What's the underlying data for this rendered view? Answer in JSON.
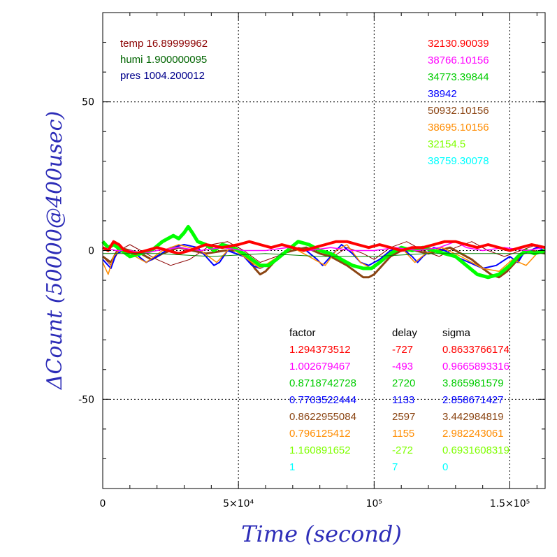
{
  "chart_data": {
    "type": "line",
    "xlabel": "Time (second)",
    "ylabel": "ΔCount (50000@400usec)",
    "xlim": [
      0,
      163000
    ],
    "ylim": [
      -80,
      80
    ],
    "grid": true,
    "x_ticks": [
      {
        "value": 0,
        "label": "0"
      },
      {
        "value": 50000,
        "label": "5×10⁴"
      },
      {
        "value": 100000,
        "label": "10⁵"
      },
      {
        "value": 150000,
        "label": "1.5×10⁵"
      }
    ],
    "y_ticks": [
      {
        "value": 50,
        "label": "50"
      },
      {
        "value": 0,
        "label": "0"
      },
      {
        "value": -50,
        "label": "-50"
      }
    ],
    "env": [
      {
        "label": "temp",
        "value": "16.89999962",
        "color": "#8b0000"
      },
      {
        "label": "humi",
        "value": "1.900000095",
        "color": "#006400"
      },
      {
        "label": "pres",
        "value": "1004.200012",
        "color": "#00008b"
      }
    ],
    "right_values": [
      {
        "value": "32130.90039",
        "color": "#ff0000"
      },
      {
        "value": "38766.10156",
        "color": "#ff00ff"
      },
      {
        "value": "34773.39844",
        "color": "#00cc00"
      },
      {
        "value": "38942",
        "color": "#0000ff"
      },
      {
        "value": "50932.10156",
        "color": "#8b4513"
      },
      {
        "value": "38695.10156",
        "color": "#ff8c00"
      },
      {
        "value": "32154.5",
        "color": "#7fff00"
      },
      {
        "value": "38759.30078",
        "color": "#00ffff"
      }
    ],
    "table": {
      "headers": [
        "factor",
        "delay",
        "sigma"
      ],
      "rows": [
        {
          "factor": "1.294373512",
          "delay": "-727",
          "sigma": "0.8633766174",
          "color": "#ff0000"
        },
        {
          "factor": "1.002679467",
          "delay": "-493",
          "sigma": "0.9665893316",
          "color": "#ff00ff"
        },
        {
          "factor": "0.8718742728",
          "delay": "2720",
          "sigma": "3.865981579",
          "color": "#00cc00"
        },
        {
          "factor": "0.7703522444",
          "delay": "1133",
          "sigma": "2.858671427",
          "color": "#0000ff"
        },
        {
          "factor": "0.8622955084",
          "delay": "2597",
          "sigma": "3.442984819",
          "color": "#8b4513"
        },
        {
          "factor": "0.796125412",
          "delay": "1155",
          "sigma": "2.982243061",
          "color": "#ff8c00"
        },
        {
          "factor": "1.160891652",
          "delay": "-272",
          "sigma": "0.6931608319",
          "color": "#7fff00"
        },
        {
          "factor": "1",
          "delay": "7",
          "sigma": "0",
          "color": "#00ffff"
        }
      ]
    },
    "series": [
      {
        "color": "#8b0000",
        "width": 1,
        "points": [
          [
            0,
            -2
          ],
          [
            3000,
            -5
          ],
          [
            6000,
            0
          ],
          [
            10000,
            2
          ],
          [
            20000,
            -3
          ],
          [
            25000,
            -5
          ],
          [
            32000,
            -3
          ],
          [
            40000,
            2
          ],
          [
            46000,
            3
          ],
          [
            52000,
            0
          ],
          [
            58000,
            -4
          ],
          [
            64000,
            -2
          ],
          [
            72000,
            1
          ],
          [
            80000,
            0
          ],
          [
            85000,
            -2
          ],
          [
            90000,
            1
          ],
          [
            96000,
            -1
          ],
          [
            100000,
            -3
          ],
          [
            106000,
            1
          ],
          [
            112000,
            3
          ],
          [
            118000,
            0
          ],
          [
            124000,
            -2
          ],
          [
            130000,
            1
          ],
          [
            136000,
            3
          ],
          [
            142000,
            0
          ],
          [
            148000,
            -2
          ],
          [
            154000,
            0
          ],
          [
            160000,
            2
          ],
          [
            163000,
            1
          ]
        ]
      },
      {
        "color": "#8b4513",
        "width": 3,
        "points": [
          [
            0,
            -2
          ],
          [
            3000,
            -4
          ],
          [
            6000,
            1
          ],
          [
            10000,
            0
          ],
          [
            14000,
            -1
          ],
          [
            18000,
            -3
          ],
          [
            22000,
            -1
          ],
          [
            25000,
            0
          ],
          [
            28000,
            1
          ],
          [
            33000,
            0
          ],
          [
            38000,
            -1
          ],
          [
            45000,
            0
          ],
          [
            50000,
            0
          ],
          [
            54000,
            -3
          ],
          [
            56000,
            -6
          ],
          [
            58000,
            -8
          ],
          [
            60000,
            -7
          ],
          [
            63000,
            -4
          ],
          [
            66000,
            -1
          ],
          [
            70000,
            0
          ],
          [
            75000,
            1
          ],
          [
            80000,
            -1
          ],
          [
            84000,
            -2
          ],
          [
            88000,
            -4
          ],
          [
            90000,
            -5
          ],
          [
            93000,
            -7
          ],
          [
            96000,
            -9
          ],
          [
            98000,
            -9
          ],
          [
            100000,
            -8
          ],
          [
            103000,
            -5
          ],
          [
            106000,
            -2
          ],
          [
            110000,
            0
          ],
          [
            115000,
            0
          ],
          [
            120000,
            -1
          ],
          [
            124000,
            0
          ],
          [
            128000,
            1
          ],
          [
            132000,
            -1
          ],
          [
            136000,
            -3
          ],
          [
            140000,
            -6
          ],
          [
            143000,
            -8
          ],
          [
            146000,
            -9
          ],
          [
            149000,
            -7
          ],
          [
            152000,
            -4
          ],
          [
            155000,
            -1
          ],
          [
            158000,
            0
          ],
          [
            163000,
            -1
          ]
        ]
      },
      {
        "color": "#0000ff",
        "width": 2,
        "points": [
          [
            0,
            -3
          ],
          [
            3000,
            -6
          ],
          [
            5000,
            -1
          ],
          [
            8000,
            0
          ],
          [
            12000,
            -1
          ],
          [
            16000,
            -4
          ],
          [
            20000,
            -2
          ],
          [
            25000,
            1
          ],
          [
            30000,
            2
          ],
          [
            35000,
            1
          ],
          [
            38000,
            -2
          ],
          [
            41000,
            -5
          ],
          [
            43000,
            -4
          ],
          [
            46000,
            0
          ],
          [
            52000,
            -2
          ],
          [
            55000,
            -5
          ],
          [
            58000,
            -6
          ],
          [
            62000,
            -4
          ],
          [
            66000,
            -1
          ],
          [
            70000,
            1
          ],
          [
            75000,
            0
          ],
          [
            79000,
            -3
          ],
          [
            81000,
            -5
          ],
          [
            83000,
            -3
          ],
          [
            88000,
            2
          ],
          [
            92000,
            -1
          ],
          [
            95000,
            -4
          ],
          [
            98000,
            -5
          ],
          [
            102000,
            -3
          ],
          [
            106000,
            0
          ],
          [
            110000,
            1
          ],
          [
            114000,
            -2
          ],
          [
            116000,
            -4
          ],
          [
            118000,
            -2
          ],
          [
            122000,
            1
          ],
          [
            126000,
            0
          ],
          [
            130000,
            -2
          ],
          [
            135000,
            -4
          ],
          [
            140000,
            -6
          ],
          [
            145000,
            -5
          ],
          [
            150000,
            -2
          ],
          [
            153000,
            -4
          ],
          [
            155000,
            -1
          ],
          [
            160000,
            1
          ],
          [
            163000,
            0
          ]
        ]
      },
      {
        "color": "#ff8c00",
        "width": 1.5,
        "points": [
          [
            0,
            -4
          ],
          [
            2000,
            -8
          ],
          [
            4000,
            -2
          ],
          [
            7000,
            1
          ],
          [
            12000,
            -2
          ],
          [
            16000,
            -4
          ],
          [
            22000,
            0
          ],
          [
            28000,
            2
          ],
          [
            36000,
            0
          ],
          [
            42000,
            -4
          ],
          [
            47000,
            1
          ],
          [
            52000,
            -2
          ],
          [
            58000,
            -6
          ],
          [
            63000,
            -3
          ],
          [
            70000,
            1
          ],
          [
            78000,
            -3
          ],
          [
            82000,
            -5
          ],
          [
            86000,
            0
          ],
          [
            90000,
            2
          ],
          [
            95000,
            -4
          ],
          [
            99000,
            -6
          ],
          [
            103000,
            -3
          ],
          [
            110000,
            1
          ],
          [
            115000,
            -4
          ],
          [
            119000,
            -1
          ],
          [
            125000,
            1
          ],
          [
            132000,
            -2
          ],
          [
            140000,
            -6
          ],
          [
            146000,
            -7
          ],
          [
            151000,
            -3
          ],
          [
            156000,
            -5
          ],
          [
            160000,
            -1
          ],
          [
            163000,
            0
          ]
        ]
      },
      {
        "color": "#00ff00",
        "width": 5,
        "points": [
          [
            0,
            3
          ],
          [
            2000,
            1
          ],
          [
            4000,
            2
          ],
          [
            7000,
            0
          ],
          [
            10000,
            -2
          ],
          [
            14000,
            -1
          ],
          [
            18000,
            0
          ],
          [
            22000,
            3
          ],
          [
            26000,
            5
          ],
          [
            28000,
            4
          ],
          [
            30000,
            6
          ],
          [
            31500,
            8
          ],
          [
            33000,
            6
          ],
          [
            35000,
            3
          ],
          [
            38000,
            2
          ],
          [
            41000,
            0
          ],
          [
            44000,
            2
          ],
          [
            48000,
            1
          ],
          [
            52000,
            -1
          ],
          [
            55000,
            -3
          ],
          [
            58000,
            -5
          ],
          [
            61000,
            -5
          ],
          [
            64000,
            -3
          ],
          [
            68000,
            0
          ],
          [
            72000,
            3
          ],
          [
            76000,
            2
          ],
          [
            80000,
            0
          ],
          [
            84000,
            -1
          ],
          [
            88000,
            -3
          ],
          [
            92000,
            -5
          ],
          [
            96000,
            -6
          ],
          [
            99000,
            -6
          ],
          [
            102000,
            -4
          ],
          [
            106000,
            -1
          ],
          [
            110000,
            1
          ],
          [
            114000,
            0
          ],
          [
            118000,
            1
          ],
          [
            122000,
            0
          ],
          [
            126000,
            -1
          ],
          [
            130000,
            -2
          ],
          [
            134000,
            -5
          ],
          [
            138000,
            -8
          ],
          [
            142000,
            -9
          ],
          [
            146000,
            -8
          ],
          [
            150000,
            -5
          ],
          [
            153000,
            -2
          ],
          [
            156000,
            0
          ],
          [
            159000,
            -1
          ],
          [
            163000,
            0
          ]
        ]
      },
      {
        "color": "#ff00ff",
        "width": 1.5,
        "points": [
          [
            0,
            1
          ],
          [
            5000,
            0
          ],
          [
            10000,
            0
          ],
          [
            15000,
            -1
          ],
          [
            20000,
            0
          ],
          [
            28000,
            1
          ],
          [
            36000,
            0
          ],
          [
            44000,
            1
          ],
          [
            52000,
            0
          ],
          [
            60000,
            0
          ],
          [
            68000,
            1
          ],
          [
            76000,
            0
          ],
          [
            84000,
            1
          ],
          [
            92000,
            0
          ],
          [
            100000,
            0
          ],
          [
            108000,
            1
          ],
          [
            116000,
            0
          ],
          [
            124000,
            1
          ],
          [
            130000,
            3
          ],
          [
            134000,
            1
          ],
          [
            140000,
            0
          ],
          [
            148000,
            1
          ],
          [
            156000,
            0
          ],
          [
            163000,
            1
          ]
        ]
      },
      {
        "color": "#ff0000",
        "width": 4,
        "points": [
          [
            0,
            1
          ],
          [
            2000,
            0
          ],
          [
            4000,
            3
          ],
          [
            6000,
            2
          ],
          [
            8000,
            0
          ],
          [
            12000,
            -1
          ],
          [
            16000,
            0
          ],
          [
            20000,
            1
          ],
          [
            24000,
            0
          ],
          [
            28000,
            -1
          ],
          [
            32000,
            0
          ],
          [
            38000,
            2
          ],
          [
            44000,
            1
          ],
          [
            50000,
            2
          ],
          [
            54000,
            3
          ],
          [
            58000,
            2
          ],
          [
            62000,
            1
          ],
          [
            66000,
            2
          ],
          [
            70000,
            1
          ],
          [
            74000,
            0
          ],
          [
            78000,
            1
          ],
          [
            82000,
            2
          ],
          [
            86000,
            3
          ],
          [
            90000,
            3
          ],
          [
            94000,
            2
          ],
          [
            98000,
            1
          ],
          [
            102000,
            2
          ],
          [
            106000,
            1
          ],
          [
            110000,
            0
          ],
          [
            114000,
            1
          ],
          [
            118000,
            1
          ],
          [
            122000,
            2
          ],
          [
            126000,
            3
          ],
          [
            130000,
            3
          ],
          [
            134000,
            2
          ],
          [
            138000,
            1
          ],
          [
            142000,
            2
          ],
          [
            146000,
            1
          ],
          [
            150000,
            0
          ],
          [
            154000,
            1
          ],
          [
            158000,
            2
          ],
          [
            163000,
            1
          ]
        ]
      },
      {
        "color": "#008000",
        "width": 1,
        "points": [
          [
            0,
            -1
          ],
          [
            20000,
            -1
          ],
          [
            40000,
            -2
          ],
          [
            60000,
            -1
          ],
          [
            80000,
            -2
          ],
          [
            100000,
            -2
          ],
          [
            120000,
            -1
          ],
          [
            140000,
            -1
          ],
          [
            163000,
            -1
          ]
        ]
      }
    ]
  }
}
